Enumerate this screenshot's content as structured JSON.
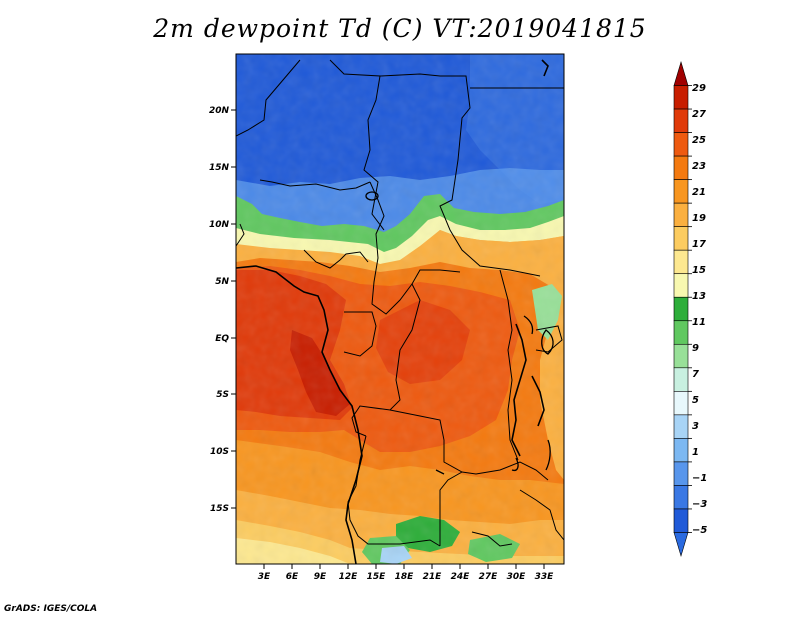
{
  "title": "2m dewpoint Td (C) VT:2019041815",
  "credit": "GrADS: IGES/COLA",
  "map": {
    "lat_labels": [
      "20N",
      "15N",
      "10N",
      "5N",
      "EQ",
      "5S",
      "10S",
      "15S"
    ],
    "lon_labels": [
      "3E",
      "6E",
      "9E",
      "12E",
      "15E",
      "18E",
      "21E",
      "24E",
      "27E",
      "30E",
      "33E"
    ]
  },
  "colorbar": {
    "labels": [
      "29",
      "27",
      "25",
      "23",
      "21",
      "19",
      "17",
      "15",
      "13",
      "11",
      "9",
      "7",
      "5",
      "3",
      "1",
      "−1",
      "−3",
      "−5"
    ],
    "colors": [
      "#a00000",
      "#c81e00",
      "#e03a0a",
      "#ee5a10",
      "#f47a10",
      "#f89620",
      "#fbb040",
      "#fccc60",
      "#fde890",
      "#f8f8b0",
      "#2eae3a",
      "#60c860",
      "#98e098",
      "#c8f0e0",
      "#e8f8fc",
      "#a8d4f6",
      "#7cb8f2",
      "#5896ec",
      "#3a78e4",
      "#205ad8",
      "#2a6ae0"
    ]
  }
}
